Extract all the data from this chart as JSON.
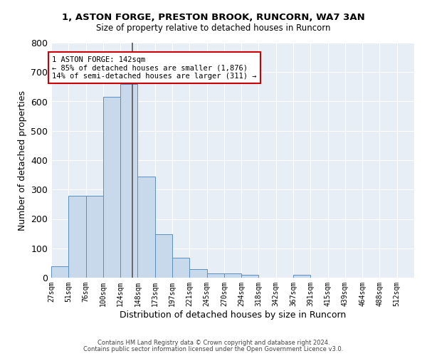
{
  "title1": "1, ASTON FORGE, PRESTON BROOK, RUNCORN, WA7 3AN",
  "title2": "Size of property relative to detached houses in Runcorn",
  "xlabel": "Distribution of detached houses by size in Runcorn",
  "ylabel": "Number of detached properties",
  "footnote1": "Contains HM Land Registry data © Crown copyright and database right 2024.",
  "footnote2": "Contains public sector information licensed under the Open Government Licence v3.0.",
  "bin_labels": [
    "27sqm",
    "51sqm",
    "76sqm",
    "100sqm",
    "124sqm",
    "148sqm",
    "173sqm",
    "197sqm",
    "221sqm",
    "245sqm",
    "270sqm",
    "294sqm",
    "318sqm",
    "342sqm",
    "367sqm",
    "391sqm",
    "415sqm",
    "439sqm",
    "464sqm",
    "488sqm",
    "512sqm"
  ],
  "bar_values": [
    40,
    280,
    280,
    615,
    660,
    345,
    148,
    68,
    30,
    15,
    15,
    10,
    0,
    0,
    10,
    0,
    0,
    0,
    0,
    0,
    0
  ],
  "bar_color": "#c9d9ec",
  "bar_edge_color": "#5a8fc2",
  "bg_color": "#e8eef5",
  "grid_color": "#ffffff",
  "property_line_index": 4.68,
  "property_line_color": "#555555",
  "annotation_text": "1 ASTON FORGE: 142sqm\n← 85% of detached houses are smaller (1,876)\n14% of semi-detached houses are larger (311) →",
  "annotation_box_color": "#ffffff",
  "annotation_box_edge_color": "#cc0000",
  "ylim": [
    0,
    800
  ],
  "yticks": [
    0,
    100,
    200,
    300,
    400,
    500,
    600,
    700,
    800
  ]
}
